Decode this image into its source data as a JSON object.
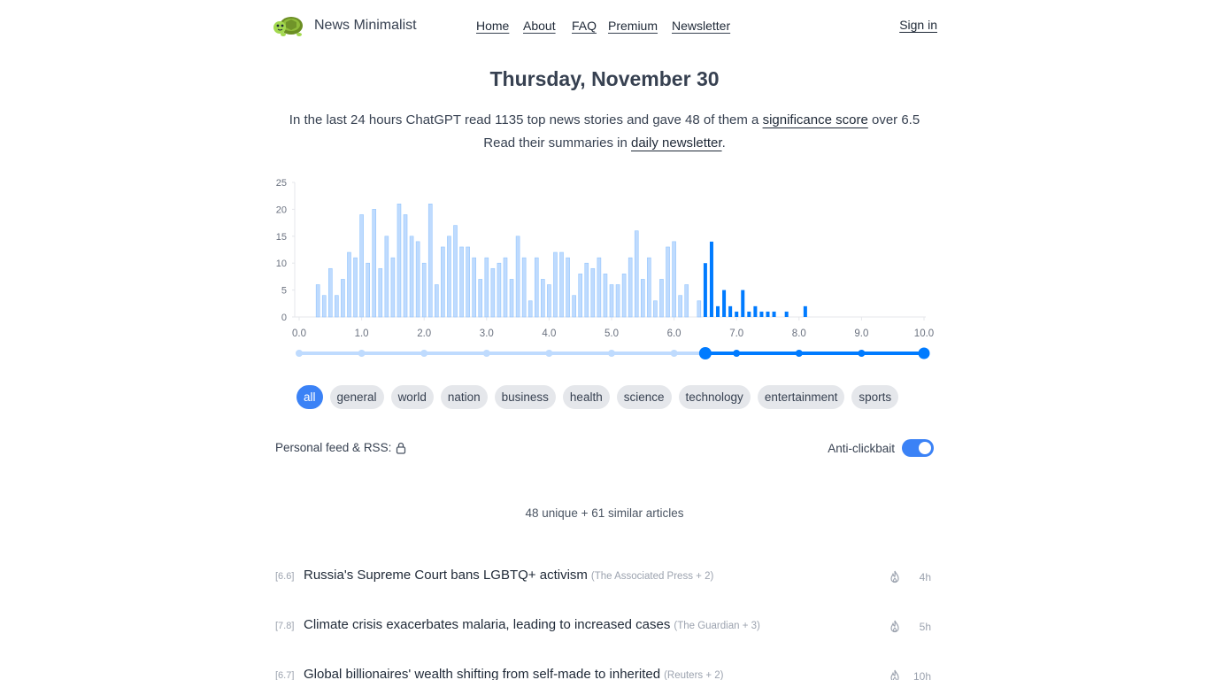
{
  "brand": {
    "name": "News Minimalist",
    "logo_icon": "turtle-icon"
  },
  "nav": {
    "home": "Home",
    "about": "About",
    "faq": "FAQ",
    "premium": "Premium",
    "newsletter": "Newsletter",
    "signin": "Sign in"
  },
  "date": "Thursday, November 30",
  "intro": {
    "line1_pre": "In the last 24 hours ChatGPT read 1135 top news stories and gave 48 of them a ",
    "line1_link": "significance score",
    "line1_post": " over 6.5",
    "line2_pre": "Read their summaries in ",
    "line2_link": "daily newsletter",
    "line2_post": "."
  },
  "chart_data": {
    "type": "bar",
    "x_start": 0.3,
    "x_step": 0.1,
    "threshold": 6.5,
    "values": [
      6,
      4,
      9,
      4,
      7,
      12,
      11,
      19,
      10,
      20,
      9,
      15,
      11,
      21,
      19,
      15,
      14,
      10,
      21,
      6,
      13,
      15,
      17,
      13,
      13,
      11,
      7,
      11,
      9,
      10,
      11,
      7,
      15,
      11,
      3,
      11,
      7,
      6,
      12,
      12,
      11,
      4,
      8,
      10,
      9,
      11,
      8,
      6,
      6,
      8,
      11,
      16,
      7,
      11,
      3,
      7,
      13,
      14,
      4,
      6,
      0,
      3,
      10,
      14,
      2,
      5,
      2,
      1,
      5,
      1,
      2,
      1,
      1,
      1,
      0,
      1,
      0,
      0,
      2
    ],
    "xlim": [
      0,
      10
    ],
    "ylim": [
      0,
      25
    ],
    "yticks": [
      0,
      5,
      10,
      15,
      20,
      25
    ],
    "xticks": [
      "0.0",
      "1.0",
      "2.0",
      "3.0",
      "4.0",
      "5.0",
      "6.0",
      "7.0",
      "8.0",
      "9.0",
      "10.0"
    ],
    "colors": {
      "below": "#bfdbfe",
      "below_stroke": "#93c5fd",
      "above": "#007bff",
      "axis": "#e5e7eb",
      "tick": "#6b7280"
    }
  },
  "slider": {
    "value": 6.5,
    "min": 0,
    "max": 10
  },
  "categories": [
    "all",
    "general",
    "world",
    "nation",
    "business",
    "health",
    "science",
    "technology",
    "entertainment",
    "sports"
  ],
  "personal_feed_label": "Personal feed & RSS:",
  "anti_clickbait_label": "Anti-clickbait",
  "article_count": "48 unique + 61 similar articles",
  "articles": [
    {
      "score": "[6.6]",
      "title": "Russia's Supreme Court bans LGBTQ+ activism",
      "source": "(The Associated Press + 2)",
      "age": "4h"
    },
    {
      "score": "[7.8]",
      "title": "Climate crisis exacerbates malaria, leading to increased cases",
      "source": "(The Guardian + 3)",
      "age": "5h"
    },
    {
      "score": "[6.7]",
      "title": "Global billionaires' wealth shifting from self-made to inherited",
      "source": "(Reuters + 2)",
      "age": "10h"
    }
  ]
}
